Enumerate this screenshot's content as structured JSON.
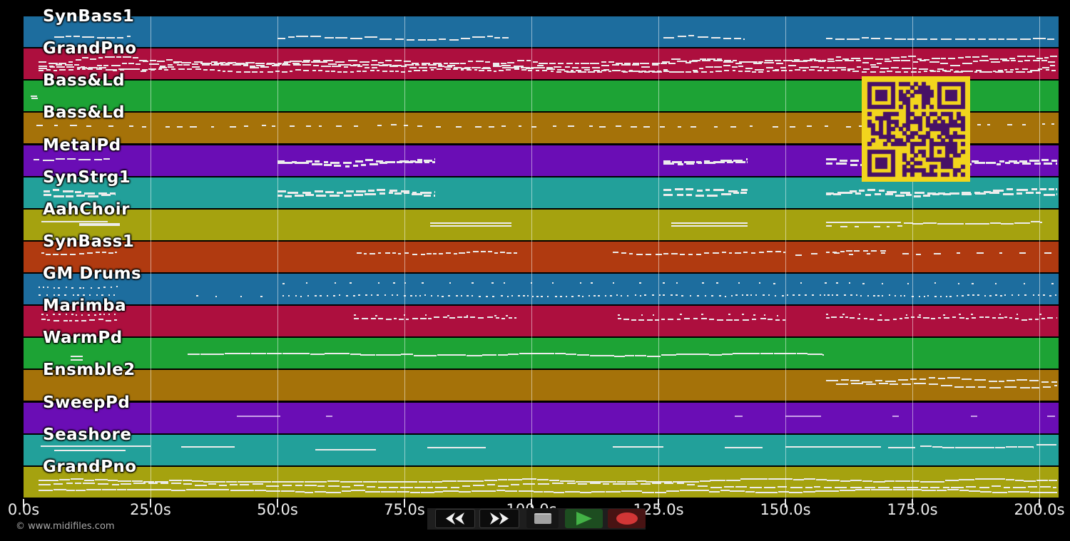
{
  "watermark": "© www.midifiles.com",
  "timeline": {
    "tick_labels": [
      "0.0s",
      "25.0s",
      "50.0s",
      "75.0s",
      "100.0s",
      "125.0s",
      "150.0s",
      "175.0s",
      "200.0s"
    ],
    "tick_seconds": [
      0,
      25,
      50,
      75,
      100,
      125,
      150,
      175,
      200
    ],
    "duration_seconds": 200
  },
  "transport": {
    "buttons": [
      {
        "id": "rewind",
        "glyph": "double-arrow-left"
      },
      {
        "id": "fast-forward",
        "glyph": "double-arrow-right"
      },
      {
        "id": "stop",
        "glyph": "square"
      },
      {
        "id": "play",
        "glyph": "triangle"
      },
      {
        "id": "record",
        "glyph": "circle"
      }
    ],
    "colors": {
      "bar_bg": "#1e1e1e",
      "plain_btn_bg": "#0c0c0c",
      "plain_btn_border": "#3a3a3a",
      "stop_btn_bg": "#161616",
      "play_btn_bg": "#1d4d20",
      "record_btn_bg": "#481313",
      "arrow_glyph": "#f2f2f2",
      "stop_glyph": "#a2a2a2",
      "play_glyph": "#43b246",
      "record_glyph": "#d23636"
    }
  },
  "qr": {
    "bg": "#f2d51d",
    "fg": "#471166"
  },
  "grid_color": "rgba(255,255,255,0.5)",
  "note_color": "#ececec",
  "tracks": [
    {
      "name": "SynBass1",
      "color": "#1d6d9e",
      "notes": [
        [
          6,
          21,
          0.72,
          "wavy"
        ],
        [
          50,
          95.5,
          0.72,
          "wavy"
        ],
        [
          126,
          142,
          0.7,
          "wavy"
        ],
        [
          158,
          203,
          0.68,
          "wavy"
        ]
      ]
    },
    {
      "name": "GrandPno",
      "color": "#ad0f3e",
      "notes": [
        [
          3,
          203.5,
          0.52,
          "dense"
        ],
        [
          3,
          203.5,
          0.72,
          "densedash"
        ]
      ]
    },
    {
      "name": "Bass&Ld",
      "color": "#1da335",
      "notes": [
        [
          1.4,
          2.6,
          0.5,
          "line"
        ],
        [
          1.5,
          2.7,
          0.58,
          "line"
        ]
      ]
    },
    {
      "name": "Bass&Ld",
      "color": "#a57209",
      "notes": [
        [
          2.5,
          203,
          0.42,
          "spardash"
        ]
      ]
    },
    {
      "name": "MetalPd",
      "color": "#6a0db5",
      "notes": [
        [
          2,
          17,
          0.5,
          "wavy"
        ],
        [
          50,
          81,
          0.55,
          "chunky"
        ],
        [
          126,
          142.5,
          0.55,
          "chunky"
        ],
        [
          158,
          203.5,
          0.55,
          "chunky"
        ]
      ]
    },
    {
      "name": "SynStrg1",
      "color": "#22a09a",
      "notes": [
        [
          4,
          18,
          0.5,
          "chunky"
        ],
        [
          50,
          81,
          0.52,
          "chunky"
        ],
        [
          126,
          142.5,
          0.52,
          "chunky"
        ],
        [
          158,
          203.5,
          0.52,
          "chunky"
        ]
      ]
    },
    {
      "name": "AahChoir",
      "color": "#a5a20f",
      "notes": [
        [
          3.5,
          16.5,
          0.4,
          "line"
        ],
        [
          11,
          19,
          0.48,
          "thick"
        ],
        [
          80,
          96,
          0.44,
          "line"
        ],
        [
          80,
          96,
          0.53,
          "line"
        ],
        [
          127.5,
          142.5,
          0.44,
          "line"
        ],
        [
          127.5,
          142.5,
          0.53,
          "line"
        ],
        [
          158,
          172.7,
          0.42,
          "line"
        ],
        [
          173.3,
          200.5,
          0.42,
          "wavyline"
        ],
        [
          158,
          176,
          0.52,
          "spardash"
        ]
      ]
    },
    {
      "name": "SynBass1",
      "color": "#b03a10",
      "notes": [
        [
          3.5,
          18.5,
          0.37,
          "densedash"
        ],
        [
          65.6,
          97.2,
          0.37,
          "densedash"
        ],
        [
          116,
          150,
          0.37,
          "densedash"
        ],
        [
          152,
          171,
          0.4,
          "spardash"
        ],
        [
          158,
          170,
          0.34,
          "densedash"
        ],
        [
          173,
          203.5,
          0.42,
          "spardash"
        ]
      ]
    },
    {
      "name": "GM Drums",
      "color": "#1d6d9e",
      "notes": [
        [
          3,
          18.5,
          0.45,
          "dots"
        ],
        [
          3,
          18.5,
          0.68,
          "dots"
        ],
        [
          34,
          50,
          0.72,
          "spardots"
        ],
        [
          51,
          203.5,
          0.72,
          "dots"
        ],
        [
          51,
          203.5,
          0.32,
          "spardots"
        ]
      ]
    },
    {
      "name": "Marimba",
      "color": "#ad0f3e",
      "notes": [
        [
          3.5,
          18.5,
          0.3,
          "dots"
        ],
        [
          3.5,
          18.5,
          0.44,
          "densedash"
        ],
        [
          65,
          97,
          0.3,
          "spardots"
        ],
        [
          65,
          97,
          0.42,
          "densedash"
        ],
        [
          117,
          150,
          0.3,
          "spardots"
        ],
        [
          117,
          150,
          0.42,
          "densedash"
        ],
        [
          158,
          203.5,
          0.3,
          "spardots"
        ],
        [
          158,
          203.5,
          0.42,
          "densedash"
        ]
      ]
    },
    {
      "name": "WarmPd",
      "color": "#1da335",
      "notes": [
        [
          9.2,
          11.6,
          0.6,
          "line"
        ],
        [
          9.2,
          11.6,
          0.73,
          "line"
        ],
        [
          32.3,
          157.5,
          0.55,
          "wavyline"
        ]
      ]
    },
    {
      "name": "Ensmble2",
      "color": "#a57209",
      "notes": [
        [
          158,
          203.5,
          0.33,
          "wavy"
        ],
        [
          160,
          203.5,
          0.5,
          "wavy"
        ]
      ]
    },
    {
      "name": "SweepPd",
      "color": "#6a0db5",
      "note_color": "#c9a0e8",
      "notes": [
        [
          42,
          50.5,
          0.44,
          "line"
        ],
        [
          59.5,
          60.8,
          0.44,
          "line"
        ],
        [
          140,
          141.6,
          0.44,
          "line"
        ],
        [
          150,
          157,
          0.44,
          "line"
        ],
        [
          171,
          172.3,
          0.44,
          "line"
        ],
        [
          186.5,
          187.8,
          0.44,
          "line"
        ],
        [
          201.5,
          203,
          0.44,
          "line"
        ]
      ]
    },
    {
      "name": "Seashore",
      "color": "#22a09a",
      "notes": [
        [
          3.4,
          25,
          0.38,
          "line"
        ],
        [
          6,
          20,
          0.52,
          "line"
        ],
        [
          31,
          41.5,
          0.4,
          "line"
        ],
        [
          57.5,
          69.5,
          0.48,
          "line"
        ],
        [
          79.5,
          91,
          0.42,
          "line"
        ],
        [
          116,
          126,
          0.4,
          "line"
        ],
        [
          138,
          145.5,
          0.42,
          "line"
        ],
        [
          150,
          168.8,
          0.4,
          "line"
        ],
        [
          170.2,
          175.6,
          0.42,
          "line"
        ],
        [
          176.5,
          199,
          0.38,
          "wavyline"
        ],
        [
          199.5,
          203.5,
          0.33,
          "line"
        ]
      ]
    },
    {
      "name": "GrandPno",
      "color": "#a5a20f",
      "notes": [
        [
          3,
          203.5,
          0.45,
          "wavyline"
        ],
        [
          3,
          203.5,
          0.6,
          "wavy"
        ],
        [
          3,
          203.5,
          0.78,
          "wavyline"
        ]
      ]
    }
  ]
}
